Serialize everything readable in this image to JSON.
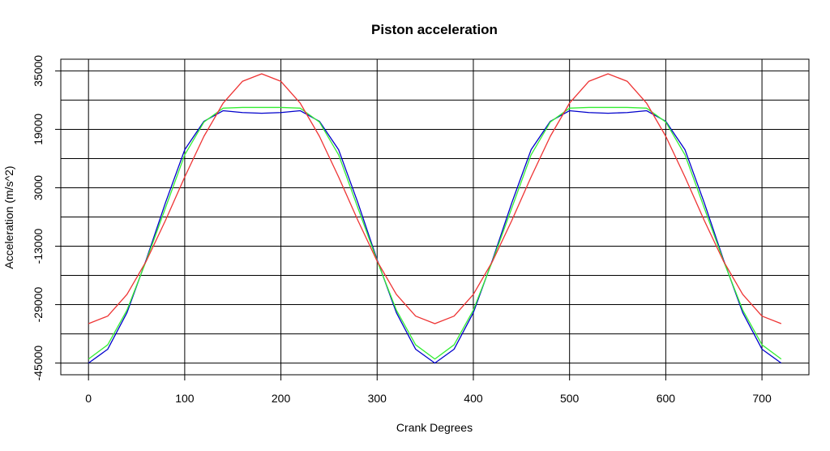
{
  "chart_data": {
    "type": "line",
    "title": "Piston acceleration",
    "xlabel": "Crank Degrees",
    "ylabel": "Acceleration (m/s^2)",
    "x": [
      0,
      20,
      40,
      60,
      80,
      100,
      120,
      140,
      160,
      180,
      200,
      220,
      240,
      260,
      280,
      300,
      320,
      340,
      360,
      380,
      400,
      420,
      440,
      460,
      480,
      500,
      520,
      540,
      560,
      580,
      600,
      620,
      640,
      660,
      680,
      700,
      720
    ],
    "series": [
      {
        "color": "#0000cc",
        "values": [
          -45000,
          -41200,
          -31200,
          -16700,
          -1100,
          13400,
          21200,
          24100,
          23600,
          23400,
          23600,
          24100,
          21200,
          13400,
          -1100,
          -16700,
          -31200,
          -41200,
          -45000,
          -41200,
          -31200,
          -16700,
          -1100,
          13400,
          21200,
          24100,
          23600,
          23400,
          23600,
          24100,
          21200,
          13400,
          -1100,
          -16700,
          -31200,
          -41200,
          -45000
        ]
      },
      {
        "color": "#33ee33",
        "values": [
          -43900,
          -40000,
          -30500,
          -17000,
          -2500,
          12000,
          21000,
          24800,
          25000,
          25000,
          25000,
          24800,
          21000,
          12000,
          -2500,
          -17000,
          -30500,
          -40000,
          -43900,
          -40000,
          -30500,
          -17000,
          -2500,
          12000,
          21000,
          24800,
          25000,
          25000,
          25000,
          24800,
          21000,
          12000,
          -2500,
          -17000,
          -30500,
          -40000,
          -43900
        ]
      },
      {
        "color": "#ee3333",
        "values": [
          -34200,
          -32140,
          -26200,
          -17100,
          -5940,
          5940,
          17100,
          26200,
          32140,
          34200,
          32140,
          26200,
          17100,
          5940,
          -5940,
          -17100,
          -26200,
          -32140,
          -34200,
          -32140,
          -26200,
          -17100,
          -5940,
          5940,
          17100,
          26200,
          32140,
          34200,
          32140,
          26200,
          17100,
          5940,
          -5940,
          -17100,
          -26200,
          -32140,
          -34200
        ]
      }
    ],
    "xlim": [
      -28.8,
      748.8
    ],
    "xticks": [
      0,
      100,
      200,
      300,
      400,
      500,
      600,
      700
    ],
    "ylim": [
      -48200,
      38200
    ],
    "yticks": [
      -45000,
      -29000,
      -13000,
      3000,
      19000,
      35000
    ],
    "ygrid": [
      -45000,
      -37000,
      -29000,
      -21000,
      -13000,
      -5000,
      3000,
      11000,
      19000,
      27000,
      35000
    ],
    "grid": true
  }
}
